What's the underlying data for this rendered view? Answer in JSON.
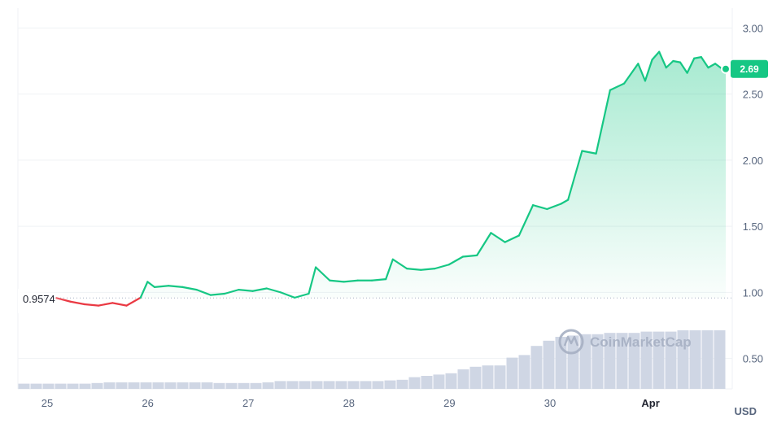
{
  "chart_data": {
    "type": "line",
    "currency": "USD",
    "open_label": "0.9574",
    "current_label": "2.69",
    "watermark": "CoinMarketCap",
    "x_ticks": [
      "25",
      "26",
      "27",
      "28",
      "29",
      "30",
      "Apr"
    ],
    "y_ticks": [
      "3.00",
      "2.50",
      "2.00",
      "1.50",
      "1.00",
      "0.50"
    ],
    "ylim": [
      0.27,
      3.15
    ],
    "baseline": 0.9574,
    "colors": {
      "up": "#16c784",
      "down": "#ea3943",
      "grid": "#eff2f5",
      "axis_text": "#58667e",
      "volume": "#cfd6e4"
    },
    "series": [
      {
        "x": [
          "2024-03-25 00:00",
          "2024-03-25 04:00",
          "2024-03-25 08:00",
          "2024-03-25 12:00",
          "2024-03-25 16:00",
          "2024-03-25 20:00",
          "2024-03-26 00:00",
          "2024-03-26 02:00",
          "2024-03-26 04:00",
          "2024-03-26 08:00",
          "2024-03-26 12:00",
          "2024-03-26 16:00",
          "2024-03-26 20:00",
          "2024-03-27 00:00",
          "2024-03-27 04:00",
          "2024-03-27 08:00",
          "2024-03-27 12:00",
          "2024-03-27 16:00",
          "2024-03-27 20:00",
          "2024-03-28 00:00",
          "2024-03-28 02:00",
          "2024-03-28 06:00",
          "2024-03-28 10:00",
          "2024-03-28 14:00",
          "2024-03-28 18:00",
          "2024-03-28 22:00",
          "2024-03-29 00:00",
          "2024-03-29 04:00",
          "2024-03-29 08:00",
          "2024-03-29 12:00",
          "2024-03-29 16:00",
          "2024-03-29 20:00",
          "2024-03-30 00:00",
          "2024-03-30 04:00",
          "2024-03-30 08:00",
          "2024-03-30 12:00",
          "2024-03-30 16:00",
          "2024-03-30 20:00",
          "2024-03-31 00:00",
          "2024-03-31 02:00",
          "2024-03-31 06:00",
          "2024-03-31 10:00",
          "2024-03-31 14:00",
          "2024-03-31 18:00",
          "2024-03-31 22:00",
          "2024-04-01 00:00",
          "2024-04-01 02:00",
          "2024-04-01 04:00",
          "2024-04-01 06:00",
          "2024-04-01 08:00",
          "2024-04-01 10:00",
          "2024-04-01 12:00",
          "2024-04-01 14:00",
          "2024-04-01 16:00",
          "2024-04-01 18:00",
          "2024-04-01 20:00",
          "2024-04-01 22:00",
          "2024-04-01 23:00"
        ],
        "values": [
          0.9574,
          0.93,
          0.91,
          0.9,
          0.92,
          0.9,
          0.96,
          1.08,
          1.04,
          1.05,
          1.04,
          1.02,
          0.98,
          0.99,
          1.02,
          1.01,
          1.03,
          1.0,
          0.96,
          0.99,
          1.19,
          1.09,
          1.08,
          1.09,
          1.09,
          1.1,
          1.25,
          1.18,
          1.17,
          1.18,
          1.21,
          1.27,
          1.28,
          1.45,
          1.38,
          1.43,
          1.66,
          1.63,
          1.67,
          1.7,
          2.07,
          2.05,
          2.53,
          2.58,
          2.73,
          2.6,
          2.76,
          2.82,
          2.7,
          2.75,
          2.74,
          2.66,
          2.77,
          2.78,
          2.7,
          2.73,
          2.69,
          2.69
        ]
      }
    ],
    "volume": [
      0.04,
      0.04,
      0.04,
      0.04,
      0.04,
      0.04,
      0.045,
      0.05,
      0.05,
      0.05,
      0.05,
      0.05,
      0.05,
      0.05,
      0.05,
      0.05,
      0.045,
      0.045,
      0.045,
      0.045,
      0.05,
      0.06,
      0.06,
      0.06,
      0.06,
      0.06,
      0.06,
      0.06,
      0.06,
      0.06,
      0.065,
      0.07,
      0.09,
      0.1,
      0.11,
      0.12,
      0.15,
      0.17,
      0.18,
      0.18,
      0.24,
      0.26,
      0.33,
      0.37,
      0.4,
      0.41,
      0.42,
      0.42,
      0.43,
      0.43,
      0.43,
      0.44,
      0.44,
      0.44,
      0.45,
      0.45,
      0.45,
      0.45
    ]
  }
}
